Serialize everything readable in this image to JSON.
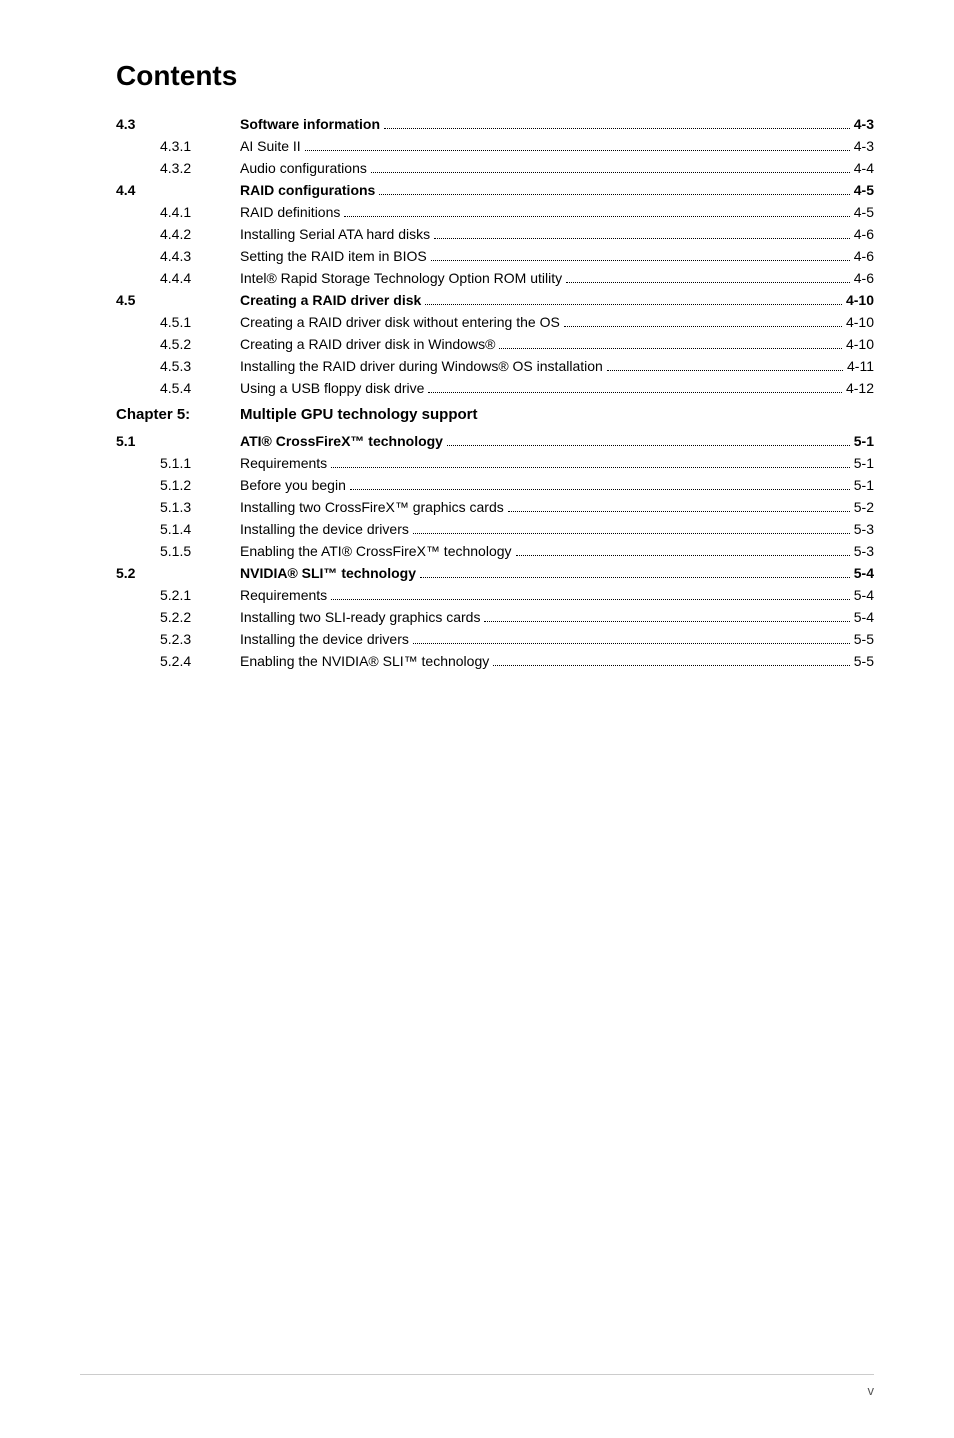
{
  "title": "Contents",
  "sections": [
    {
      "num": "4.3",
      "label": "Software information",
      "page": "4-3",
      "bold": true,
      "items": [
        {
          "num": "4.3.1",
          "label": "AI Suite II",
          "page": "4-3"
        },
        {
          "num": "4.3.2",
          "label": "Audio configurations",
          "page": "4-4"
        }
      ]
    },
    {
      "num": "4.4",
      "label": "RAID configurations",
      "page": "4-5",
      "bold": true,
      "items": [
        {
          "num": "4.4.1",
          "label": "RAID definitions",
          "page": "4-5"
        },
        {
          "num": "4.4.2",
          "label": "Installing Serial ATA hard disks",
          "page": "4-6"
        },
        {
          "num": "4.4.3",
          "label": "Setting the RAID item in BIOS",
          "page": "4-6"
        },
        {
          "num": "4.4.4",
          "label": "Intel® Rapid Storage Technology Option ROM utility",
          "page": "4-6"
        }
      ]
    },
    {
      "num": "4.5",
      "label": "Creating a RAID driver disk",
      "page": "4-10",
      "bold": true,
      "items": [
        {
          "num": "4.5.1",
          "label": "Creating a RAID driver disk without entering the OS",
          "page": "4-10"
        },
        {
          "num": "4.5.2",
          "label": "Creating a RAID driver disk in Windows®",
          "page": "4-10"
        },
        {
          "num": "4.5.3",
          "label": "Installing the RAID driver during Windows® OS installation",
          "page": "4-11"
        },
        {
          "num": "4.5.4",
          "label": "Using a USB floppy disk drive",
          "page": "4-12"
        }
      ]
    }
  ],
  "chapter": {
    "label": "Chapter 5:",
    "title": "Multiple GPU technology support"
  },
  "sections2": [
    {
      "num": "5.1",
      "label": "ATI® CrossFireX™ technology",
      "page": "5-1",
      "bold": true,
      "items": [
        {
          "num": "5.1.1",
          "label": "Requirements",
          "page": "5-1"
        },
        {
          "num": "5.1.2",
          "label": "Before you begin",
          "page": "5-1"
        },
        {
          "num": "5.1.3",
          "label": "Installing two CrossFireX™ graphics cards",
          "page": "5-2"
        },
        {
          "num": "5.1.4",
          "label": "Installing the device drivers",
          "page": "5-3"
        },
        {
          "num": "5.1.5",
          "label": "Enabling the ATI® CrossFireX™ technology",
          "page": "5-3"
        }
      ]
    },
    {
      "num": "5.2",
      "label": "NVIDIA® SLI™ technology",
      "page": "5-4",
      "bold": true,
      "items": [
        {
          "num": "5.2.1",
          "label": "Requirements",
          "page": "5-4"
        },
        {
          "num": "5.2.2",
          "label": "Installing two SLI-ready graphics cards",
          "page": "5-4"
        },
        {
          "num": "5.2.3",
          "label": "Installing the device drivers",
          "page": "5-5"
        },
        {
          "num": "5.2.4",
          "label": "Enabling the NVIDIA® SLI™ technology",
          "page": "5-5"
        }
      ]
    }
  ],
  "footer_page": "v",
  "colors": {
    "background": "#ffffff",
    "text": "#000000",
    "footer_border": "#cccccc",
    "footer_text": "#555555"
  },
  "typography": {
    "title_fontsize": 28,
    "body_fontsize": 14,
    "chapter_fontsize": 15,
    "footer_fontsize": 13
  }
}
